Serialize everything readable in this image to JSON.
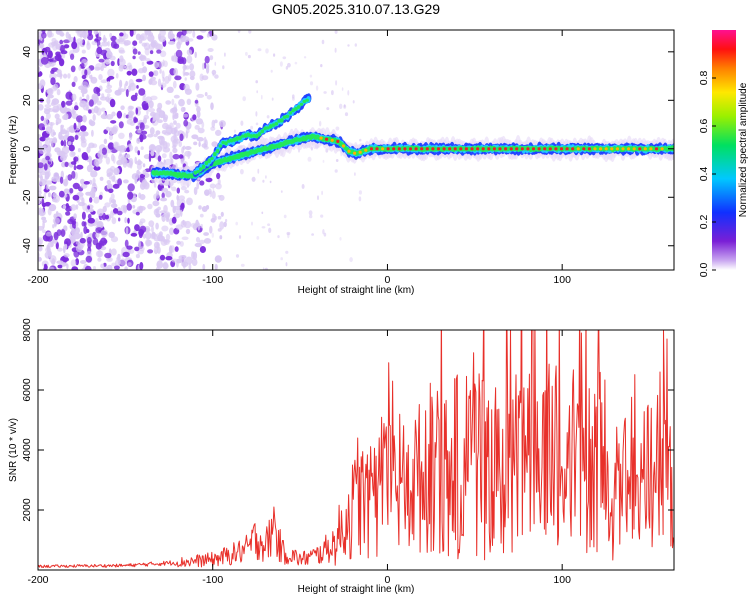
{
  "title": "GN05.2025.310.07.13.G29",
  "chart_data": [
    {
      "type": "heatmap",
      "name": "spectrogram",
      "xlabel": "Height of straight line (km)",
      "ylabel": "Frequency (Hz)",
      "xlim": [
        -200,
        164
      ],
      "ylim": [
        -50,
        49
      ],
      "xticks": [
        -200,
        -100,
        0,
        100
      ],
      "xtick_labels": [
        "-200",
        "-100",
        "0",
        "100"
      ],
      "yticks": [
        -40,
        -20,
        0,
        20,
        40
      ],
      "ytick_labels": [
        "-40",
        "-20",
        "0",
        "20",
        "40"
      ],
      "ridge": {
        "x": [
          -135,
          -125,
          -118,
          -110,
          -100,
          -90,
          -80,
          -70,
          -60,
          -50,
          -42,
          -35,
          -28,
          -22,
          -18,
          -14,
          -10,
          -5,
          0,
          20,
          40,
          60,
          80,
          100,
          120,
          140,
          164
        ],
        "y": [
          -10,
          -10,
          -11,
          -11,
          -6,
          -4,
          -2,
          0,
          2,
          4,
          5,
          4,
          3,
          -1,
          -2,
          -1,
          0,
          0,
          0,
          0,
          0,
          0,
          0,
          0,
          0,
          0,
          0
        ]
      },
      "upper_branch": {
        "x": [
          -110,
          -100,
          -95,
          -90,
          -85,
          -80,
          -75,
          -70,
          -65,
          -60,
          -55,
          -50,
          -45
        ],
        "y": [
          -10,
          -4,
          2,
          3,
          4,
          6,
          5,
          8,
          10,
          12,
          15,
          18,
          21
        ]
      },
      "colorbar": {
        "label": "Normalized spectral amplitude",
        "range": [
          0,
          1
        ],
        "ticks": [
          0.0,
          0.2,
          0.4,
          0.6,
          0.8
        ],
        "tick_labels": [
          "0.0",
          "0.2",
          "0.4",
          "0.6",
          "0.8"
        ]
      }
    },
    {
      "type": "line",
      "name": "snr",
      "xlabel": "Height of straight line (km)",
      "ylabel": "SNR (10 * v/v)",
      "xlim": [
        -200,
        164
      ],
      "ylim": [
        0,
        8000
      ],
      "xticks": [
        -200,
        -100,
        0,
        100
      ],
      "xtick_labels": [
        "-200",
        "-100",
        "0",
        "100"
      ],
      "yticks": [
        2000,
        4000,
        6000,
        8000
      ],
      "ytick_labels": [
        "2000",
        "4000",
        "6000",
        "8000"
      ],
      "color": "#e8302a",
      "envelope": {
        "x": [
          -200,
          -150,
          -120,
          -100,
          -90,
          -80,
          -75,
          -70,
          -65,
          -60,
          -55,
          -50,
          -40,
          -30,
          -25,
          -20,
          -15,
          -10,
          -5,
          0,
          10,
          20,
          30,
          40,
          50,
          60,
          70,
          80,
          90,
          100,
          110,
          120,
          130,
          140,
          150,
          160,
          164
        ],
        "y": [
          120,
          150,
          250,
          350,
          500,
          700,
          1100,
          800,
          1300,
          600,
          500,
          350,
          500,
          900,
          1500,
          2000,
          2400,
          2200,
          2600,
          2700,
          2900,
          3100,
          3300,
          3600,
          3700,
          3800,
          3700,
          3650,
          3700,
          3750,
          3600,
          3700,
          3650,
          3600,
          3500,
          3200,
          3300
        ]
      },
      "peaks": {
        "x": [
          -65,
          -17,
          40,
          50,
          92,
          106,
          111,
          156,
          158,
          160
        ],
        "y": [
          2100,
          4400,
          6500,
          6200,
          5900,
          6200,
          7900,
          6600,
          8000,
          7700
        ]
      }
    }
  ],
  "colors": {
    "ridge_core": "#e8202a",
    "ridge_mid": "#22e85a",
    "ridge_edge": "#2040ff",
    "noise_purple": "#7b2cdc",
    "noise_light": "#d9c8f3",
    "snr_line": "#e8302a"
  }
}
